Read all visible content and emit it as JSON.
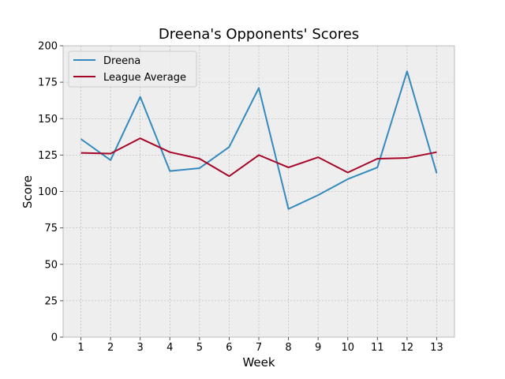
{
  "chart_data": {
    "type": "line",
    "title": "Dreena's Opponents' Scores",
    "xlabel": "Week",
    "ylabel": "Score",
    "x": [
      1,
      2,
      3,
      4,
      5,
      6,
      7,
      8,
      9,
      10,
      11,
      12,
      13
    ],
    "xlim": [
      0.4,
      13.6
    ],
    "ylim": [
      0,
      200
    ],
    "yticks": [
      0,
      25,
      50,
      75,
      100,
      125,
      150,
      175,
      200
    ],
    "grid": true,
    "legend_position": "top-left",
    "series": [
      {
        "name": "Dreena",
        "color": "#348abd",
        "values": [
          136,
          121.5,
          165,
          114,
          116,
          130.5,
          171,
          88,
          97.5,
          108.5,
          116.5,
          182.5,
          112.5
        ]
      },
      {
        "name": "League Average",
        "color": "#a60628",
        "values": [
          126.5,
          126,
          136.5,
          127,
          122.5,
          110.5,
          125,
          116.5,
          123.5,
          113,
          122.5,
          123,
          127
        ]
      }
    ],
    "colors": {
      "plot_background": "#eeeeee",
      "grid": "#b0b0b0",
      "axes_edge": "#bcbcbc"
    }
  }
}
